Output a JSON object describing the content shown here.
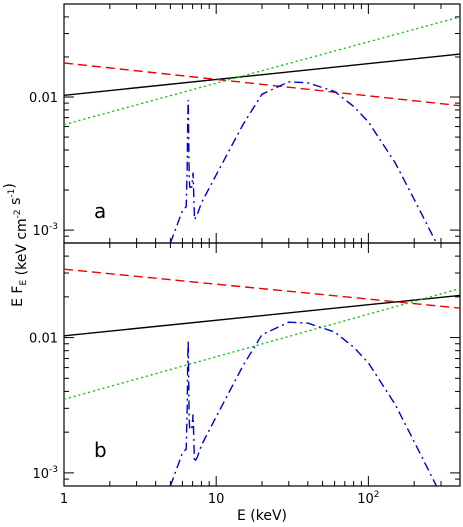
{
  "chart_data": [
    {
      "type": "line",
      "panel_label": "a",
      "xscale": "log",
      "yscale": "log",
      "xlim": [
        1,
        400
      ],
      "ylim": [
        0.0008,
        0.05
      ],
      "xlabel": "E (keV)",
      "ylabel": "E F_E (keV cm^-2 s^-1)",
      "yticks": [
        {
          "value": 0.01,
          "text": "0.01"
        },
        {
          "value": 0.001,
          "text": "10^-3"
        }
      ],
      "xticks": [],
      "series": [
        {
          "color": "#000000",
          "style": "solid",
          "x": [
            1,
            400
          ],
          "y": [
            0.0103,
            0.021
          ]
        },
        {
          "color": "#ee0000",
          "style": "dashed",
          "x": [
            1,
            400
          ],
          "y": [
            0.018,
            0.0086
          ]
        },
        {
          "color": "#00cc00",
          "style": "dotted",
          "x": [
            1,
            400
          ],
          "y": [
            0.0062,
            0.04
          ]
        },
        {
          "color": "#0000cc",
          "style": "dashdot",
          "x": [
            5.0,
            6.0,
            6.35,
            6.45,
            6.5,
            6.55,
            6.65,
            6.7,
            6.9,
            7.05,
            7.2,
            7.5,
            8,
            10,
            15,
            20,
            30,
            40,
            60,
            80,
            100,
            150,
            200,
            280
          ],
          "y": [
            0.0008,
            0.0014,
            0.0015,
            0.003,
            0.0065,
            0.0095,
            0.0025,
            0.0021,
            0.0021,
            0.0027,
            0.0012,
            0.0013,
            0.0016,
            0.0026,
            0.0062,
            0.0105,
            0.013,
            0.0128,
            0.011,
            0.0085,
            0.0065,
            0.0032,
            0.0017,
            0.0008
          ]
        }
      ]
    },
    {
      "type": "line",
      "panel_label": "b",
      "xscale": "log",
      "yscale": "log",
      "xlim": [
        1,
        400
      ],
      "ylim": [
        0.0008,
        0.05
      ],
      "xlabel": "E (keV)",
      "ylabel": "E F_E (keV cm^-2 s^-1)",
      "yticks": [
        {
          "value": 0.01,
          "text": "0.01"
        },
        {
          "value": 0.001,
          "text": "10^-3"
        }
      ],
      "xticks": [
        {
          "value": 1,
          "text": "1"
        },
        {
          "value": 10,
          "text": "10"
        },
        {
          "value": 100,
          "text": "10^2"
        }
      ],
      "series": [
        {
          "color": "#000000",
          "style": "solid",
          "x": [
            1,
            400
          ],
          "y": [
            0.0103,
            0.0205
          ]
        },
        {
          "color": "#ee0000",
          "style": "dashed",
          "x": [
            1,
            400
          ],
          "y": [
            0.032,
            0.0165
          ]
        },
        {
          "color": "#00cc00",
          "style": "dotted",
          "x": [
            1,
            400
          ],
          "y": [
            0.0035,
            0.023
          ]
        },
        {
          "color": "#0000cc",
          "style": "dashdot",
          "x": [
            5.0,
            6.0,
            6.35,
            6.45,
            6.5,
            6.55,
            6.65,
            6.7,
            6.9,
            7.05,
            7.2,
            7.5,
            8,
            10,
            15,
            20,
            30,
            40,
            60,
            80,
            100,
            150,
            200,
            280
          ],
          "y": [
            0.0008,
            0.0014,
            0.0015,
            0.003,
            0.0065,
            0.0095,
            0.0025,
            0.0021,
            0.0021,
            0.0027,
            0.0012,
            0.0013,
            0.0016,
            0.0026,
            0.0062,
            0.0105,
            0.013,
            0.0128,
            0.011,
            0.0085,
            0.0065,
            0.0032,
            0.0017,
            0.0008
          ]
        }
      ]
    }
  ]
}
